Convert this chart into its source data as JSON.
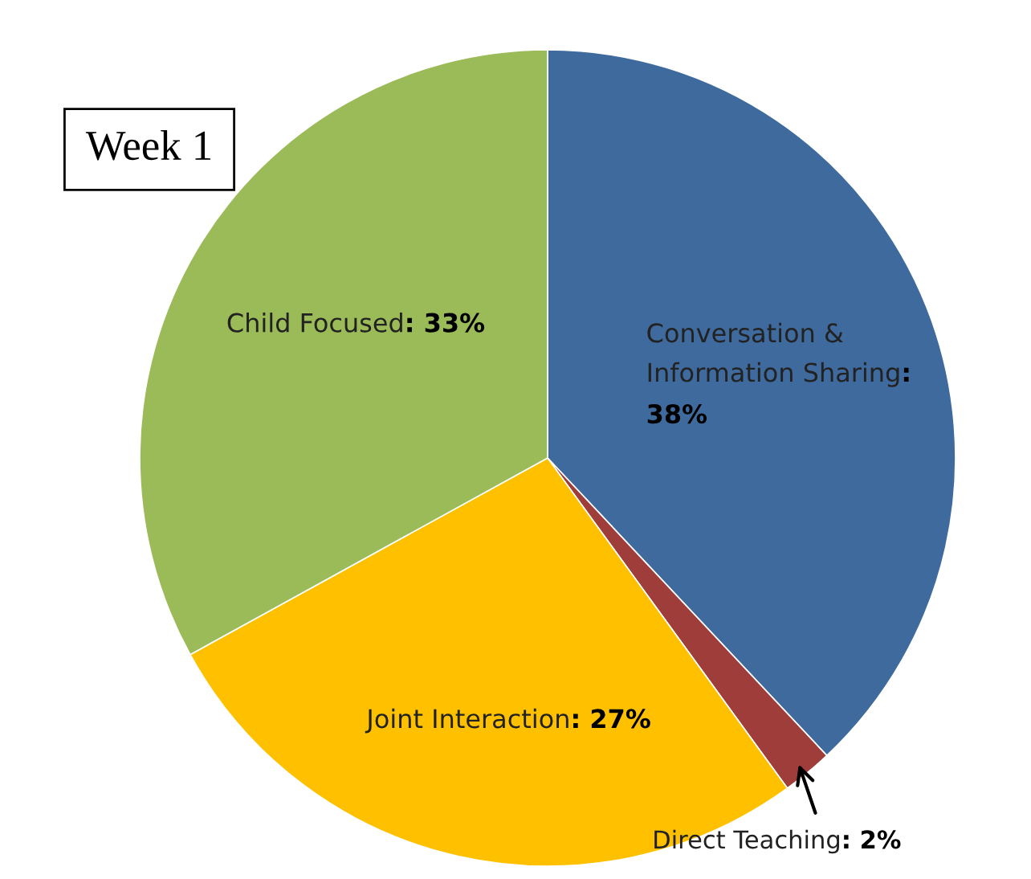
{
  "chart_data": {
    "type": "pie",
    "title": "Week 1",
    "categories": [
      "Conversation &\nInformation Sharing",
      "Direct Teaching",
      "Joint Interaction",
      "Child Focused"
    ],
    "values": [
      38,
      2,
      27,
      33
    ],
    "value_labels": [
      ": 38%",
      ": 2%",
      ": 27%",
      ": 33%"
    ],
    "colors": [
      "#3f6a9e",
      "#9e3d3a",
      "#ffc000",
      "#9bbb59"
    ]
  }
}
